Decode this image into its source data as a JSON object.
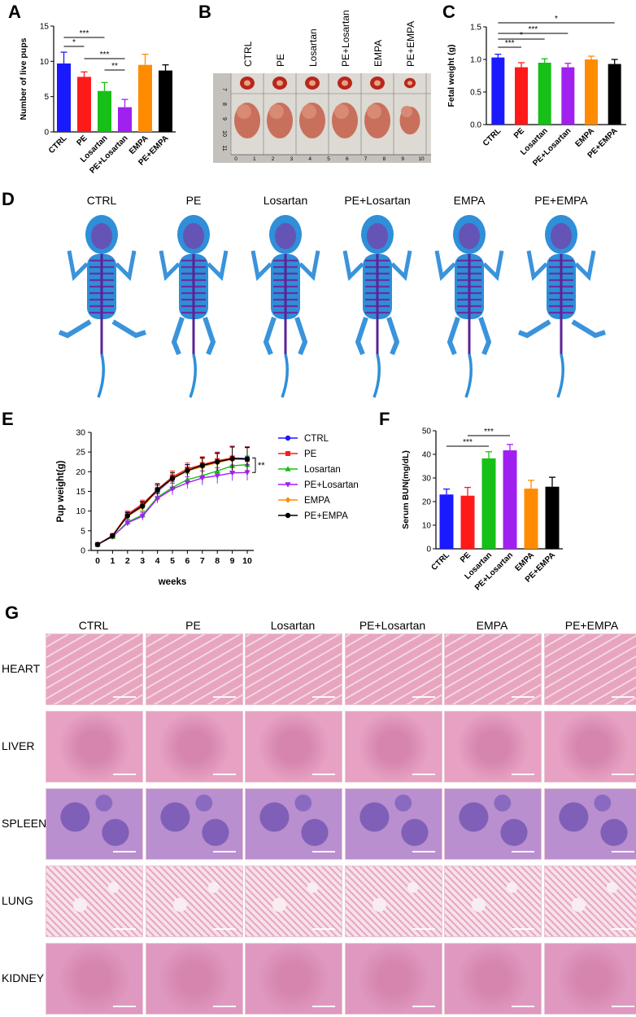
{
  "panel_letters": {
    "A": "A",
    "B": "B",
    "C": "C",
    "D": "D",
    "E": "E",
    "F": "F",
    "G": "G"
  },
  "groups": [
    "CTRL",
    "PE",
    "Losartan",
    "PE+Losartan",
    "EMPA",
    "PE+EMPA"
  ],
  "colors": {
    "CTRL": "#1a1aff",
    "PE": "#ff1a1a",
    "Losartan": "#16c016",
    "PE+Losartan": "#a020f0",
    "EMPA": "#ff8c00",
    "PE+EMPA": "#000000"
  },
  "chart_data": [
    {
      "id": "A",
      "type": "bar",
      "categories": [
        "CTRL",
        "PE",
        "Losartan",
        "PE+Losartan",
        "EMPA",
        "PE+EMPA"
      ],
      "values": [
        9.7,
        7.8,
        5.8,
        3.5,
        9.5,
        8.7
      ],
      "errors": [
        1.6,
        0.7,
        1.2,
        1.1,
        1.5,
        0.8
      ],
      "ylabel": "Number of live pups",
      "xlabel": "",
      "ylim": [
        0,
        15
      ],
      "yticks": [
        0,
        5,
        10,
        15
      ],
      "significance": [
        {
          "from": 0,
          "to": 2,
          "label": "***"
        },
        {
          "from": 0,
          "to": 1,
          "label": "*"
        },
        {
          "from": 1,
          "to": 3,
          "label": "***"
        },
        {
          "from": 2,
          "to": 3,
          "label": "**"
        }
      ]
    },
    {
      "id": "C",
      "type": "bar",
      "categories": [
        "CTRL",
        "PE",
        "Losartan",
        "PE+Losartan",
        "EMPA",
        "PE+EMPA"
      ],
      "values": [
        1.03,
        0.88,
        0.95,
        0.88,
        1.0,
        0.93
      ],
      "errors": [
        0.05,
        0.07,
        0.06,
        0.06,
        0.05,
        0.07
      ],
      "ylabel": "Fetal weight (g)",
      "xlabel": "",
      "ylim": [
        0,
        1.5
      ],
      "yticks": [
        "0.0",
        "0.5",
        "1.0",
        "1.5"
      ],
      "significance": [
        {
          "from": 0,
          "to": 5,
          "label": "*"
        },
        {
          "from": 0,
          "to": 3,
          "label": "***"
        },
        {
          "from": 0,
          "to": 2,
          "label": "*"
        },
        {
          "from": 0,
          "to": 1,
          "label": "***"
        }
      ]
    },
    {
      "id": "E",
      "type": "line",
      "x": [
        0,
        1,
        2,
        3,
        4,
        5,
        6,
        7,
        8,
        9,
        10
      ],
      "xlabel": "weeks",
      "ylabel": "Pup weight(g)",
      "xlim": [
        0,
        10
      ],
      "ylim": [
        0,
        30
      ],
      "yticks": [
        0,
        5,
        10,
        15,
        20,
        25,
        30
      ],
      "series": [
        {
          "name": "CTRL",
          "values": [
            1.5,
            3.8,
            9.0,
            11.5,
            15.0,
            18.2,
            20.3,
            21.5,
            22.6,
            23.5,
            23.4
          ],
          "errors": [
            0.3,
            0.4,
            0.8,
            1.0,
            1.5,
            1.5,
            1.5,
            2.0,
            2.2,
            3.0,
            3.0
          ]
        },
        {
          "name": "PE",
          "values": [
            1.5,
            3.8,
            9.2,
            11.8,
            15.5,
            18.7,
            20.7,
            21.8,
            22.8,
            23.5,
            23.1
          ],
          "errors": [
            0.3,
            0.4,
            0.8,
            1.0,
            1.5,
            1.5,
            1.5,
            2.0,
            2.2,
            3.0,
            3.0
          ]
        },
        {
          "name": "Losartan",
          "values": [
            1.5,
            3.5,
            7.2,
            9.0,
            13.5,
            16.0,
            18.0,
            19.0,
            20.2,
            21.5,
            21.8
          ],
          "errors": [
            0.3,
            0.4,
            0.8,
            1.0,
            1.2,
            1.5,
            1.5,
            2.0,
            2.0,
            2.2,
            2.2
          ]
        },
        {
          "name": "PE+Losartan",
          "values": [
            1.5,
            3.5,
            7.0,
            8.7,
            13.2,
            15.6,
            17.2,
            18.4,
            19.0,
            19.7,
            19.8
          ],
          "errors": [
            0.3,
            0.4,
            0.8,
            1.0,
            1.2,
            1.5,
            1.5,
            1.8,
            2.0,
            2.0,
            2.0
          ]
        },
        {
          "name": "EMPA",
          "values": [
            1.5,
            3.7,
            8.7,
            11.0,
            15.3,
            18.2,
            20.2,
            21.3,
            22.3,
            23.2,
            23.3
          ],
          "errors": [
            0.3,
            0.4,
            0.8,
            1.0,
            1.5,
            1.5,
            1.5,
            2.0,
            2.2,
            3.0,
            3.0
          ]
        },
        {
          "name": "PE+EMPA",
          "values": [
            1.5,
            3.7,
            8.8,
            11.3,
            15.4,
            18.3,
            20.3,
            21.6,
            22.5,
            23.3,
            23.2
          ],
          "errors": [
            0.3,
            0.4,
            0.8,
            1.0,
            1.5,
            1.5,
            1.5,
            2.0,
            2.2,
            3.0,
            3.0
          ]
        }
      ],
      "annotation": "**"
    },
    {
      "id": "F",
      "type": "bar",
      "categories": [
        "CTRL",
        "PE",
        "Losartan",
        "PE+Losartan",
        "EMPA",
        "PE+EMPA"
      ],
      "values": [
        23.0,
        22.5,
        38.3,
        41.7,
        25.5,
        26.3
      ],
      "errors": [
        2.3,
        3.5,
        2.8,
        2.5,
        3.5,
        4.0
      ],
      "ylabel": "Serum BUN(mg/dL)",
      "xlabel": "",
      "ylim": [
        0,
        50
      ],
      "yticks": [
        0,
        10,
        20,
        30,
        40,
        50
      ],
      "significance": [
        {
          "from": 0,
          "to": 2,
          "label": "***"
        },
        {
          "from": 1,
          "to": 3,
          "label": "***"
        }
      ]
    }
  ],
  "panel_b": {
    "labels": [
      "CTRL",
      "PE",
      "Losartan",
      "PE+Losartan",
      "EMPA",
      "PE+EMPA"
    ],
    "ruler_top": [
      "7",
      "8",
      "9",
      "10",
      "11"
    ],
    "ruler_bottom": [
      "0",
      "1",
      "2",
      "3",
      "4",
      "5",
      "6",
      "7",
      "8",
      "9",
      "10"
    ]
  },
  "panel_d": {
    "labels": [
      "CTRL",
      "PE",
      "Losartan",
      "PE+Losartan",
      "EMPA",
      "PE+EMPA"
    ]
  },
  "panel_g": {
    "columns": [
      "CTRL",
      "PE",
      "Losartan",
      "PE+Losartan",
      "EMPA",
      "PE+EMPA"
    ],
    "rows": [
      "HEART",
      "LIVER",
      "SPLEEN",
      "LUNG",
      "KIDNEY"
    ],
    "tissue_colors": {
      "HEART": "#e8a5bf",
      "LIVER": "#e7a1c2",
      "SPLEEN": "#b98fcf",
      "LUNG": "#f1c9d8",
      "KIDNEY": "#df98bf"
    }
  }
}
